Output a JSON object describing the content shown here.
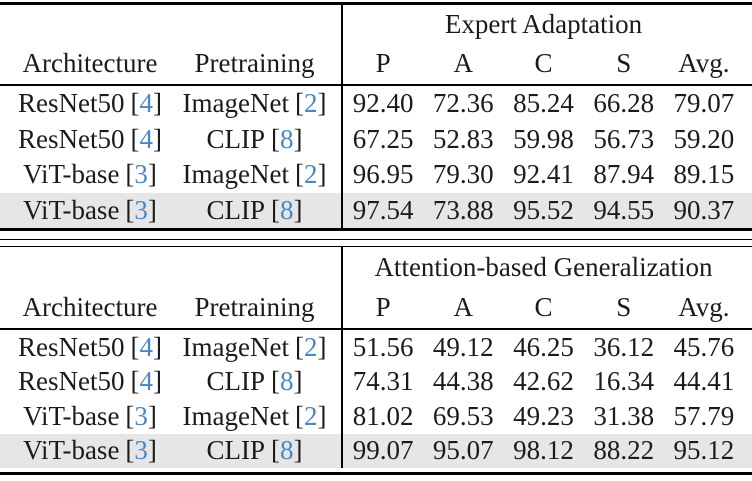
{
  "accent_color": "#4d86c4",
  "highlight_color": "#e6e6e6",
  "punct": {
    "open": "[",
    "close": "]"
  },
  "tables": [
    {
      "group_header": "Expert Adaptation",
      "architecture_header": "Architecture",
      "pretraining_header": "Pretraining",
      "metric_headers": [
        "P",
        "A",
        "C",
        "S",
        "Avg."
      ],
      "rows": [
        {
          "arch": "ResNet50",
          "arch_cite": "4",
          "pre": "ImageNet",
          "pre_cite": "2",
          "values": [
            "92.40",
            "72.36",
            "85.24",
            "66.28",
            "79.07"
          ],
          "highlight": false
        },
        {
          "arch": "ResNet50",
          "arch_cite": "4",
          "pre": "CLIP",
          "pre_cite": "8",
          "values": [
            "67.25",
            "52.83",
            "59.98",
            "56.73",
            "59.20"
          ],
          "highlight": false
        },
        {
          "arch": "ViT-base",
          "arch_cite": "3",
          "pre": "ImageNet",
          "pre_cite": "2",
          "values": [
            "96.95",
            "79.30",
            "92.41",
            "87.94",
            "89.15"
          ],
          "highlight": false
        },
        {
          "arch": "ViT-base",
          "arch_cite": "3",
          "pre": "CLIP",
          "pre_cite": "8",
          "values": [
            "97.54",
            "73.88",
            "95.52",
            "94.55",
            "90.37"
          ],
          "highlight": true
        }
      ]
    },
    {
      "group_header": "Attention-based Generalization",
      "architecture_header": "Architecture",
      "pretraining_header": "Pretraining",
      "metric_headers": [
        "P",
        "A",
        "C",
        "S",
        "Avg."
      ],
      "rows": [
        {
          "arch": "ResNet50",
          "arch_cite": "4",
          "pre": "ImageNet",
          "pre_cite": "2",
          "values": [
            "51.56",
            "49.12",
            "46.25",
            "36.12",
            "45.76"
          ],
          "highlight": false
        },
        {
          "arch": "ResNet50",
          "arch_cite": "4",
          "pre": "CLIP",
          "pre_cite": "8",
          "values": [
            "74.31",
            "44.38",
            "42.62",
            "16.34",
            "44.41"
          ],
          "highlight": false
        },
        {
          "arch": "ViT-base",
          "arch_cite": "3",
          "pre": "ImageNet",
          "pre_cite": "2",
          "values": [
            "81.02",
            "69.53",
            "49.23",
            "31.38",
            "57.79"
          ],
          "highlight": false
        },
        {
          "arch": "ViT-base",
          "arch_cite": "3",
          "pre": "CLIP",
          "pre_cite": "8",
          "values": [
            "99.07",
            "95.07",
            "98.12",
            "88.22",
            "95.12"
          ],
          "highlight": true
        }
      ]
    }
  ]
}
